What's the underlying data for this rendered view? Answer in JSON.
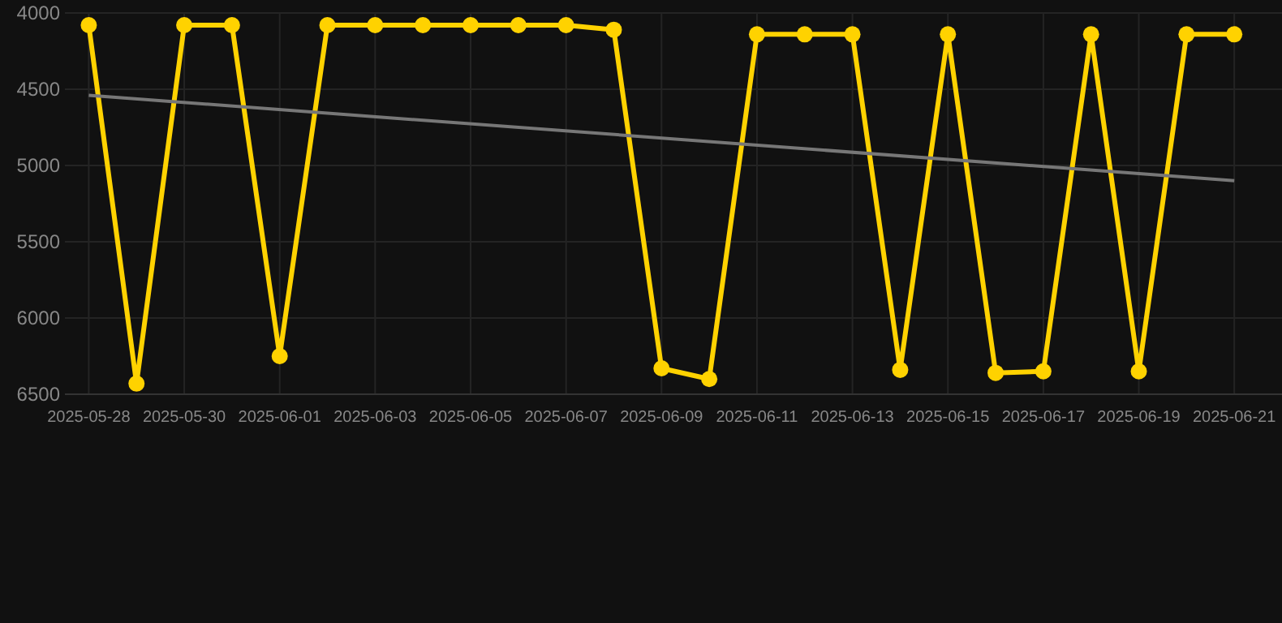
{
  "chart_data": {
    "type": "line",
    "x": [
      "2025-05-28",
      "2025-05-29",
      "2025-05-30",
      "2025-05-31",
      "2025-06-01",
      "2025-06-02",
      "2025-06-03",
      "2025-06-04",
      "2025-06-05",
      "2025-06-06",
      "2025-06-07",
      "2025-06-08",
      "2025-06-09",
      "2025-06-10",
      "2025-06-11",
      "2025-06-12",
      "2025-06-13",
      "2025-06-14",
      "2025-06-15",
      "2025-06-16",
      "2025-06-17",
      "2025-06-18",
      "2025-06-19",
      "2025-06-20",
      "2025-06-21"
    ],
    "series": [
      {
        "color": "#ffd200",
        "marker": "circle",
        "values": [
          4080,
          6430,
          4080,
          4080,
          6250,
          4080,
          4080,
          4080,
          4080,
          4080,
          4080,
          4110,
          6330,
          6400,
          4140,
          4140,
          4140,
          6340,
          4140,
          6360,
          6350,
          4140,
          6350,
          4140,
          4140
        ]
      },
      {
        "type": "line",
        "color": "#777777",
        "marker": "none",
        "x": [
          "2025-05-28",
          "2025-06-21"
        ],
        "values": [
          4540,
          5100
        ]
      }
    ],
    "xlim": [
      "2025-05-27T12:00",
      "2025-06-22"
    ],
    "xticks": [
      "2025-05-28",
      "2025-05-30",
      "2025-06-01",
      "2025-06-03",
      "2025-06-05",
      "2025-06-07",
      "2025-06-09",
      "2025-06-11",
      "2025-06-13",
      "2025-06-15",
      "2025-06-17",
      "2025-06-19",
      "2025-06-21"
    ],
    "ylim": [
      6500,
      4000
    ],
    "yticks": [
      4000,
      4500,
      5000,
      5500,
      6000,
      6500
    ],
    "grid": true
  }
}
